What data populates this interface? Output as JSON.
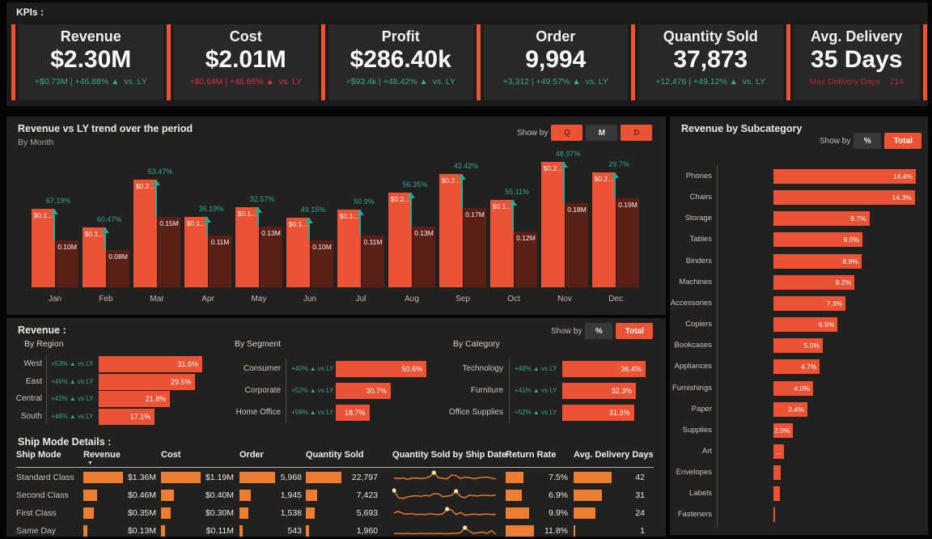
{
  "panels": {
    "kpi": {
      "heading": "KPIs :"
    },
    "trend": {
      "title": "Revenue vs LY trend over the period",
      "subtitle": "By Month",
      "show_by": "Show by",
      "buttons": [
        {
          "label": "Q",
          "active": false
        },
        {
          "label": "M",
          "active": true
        },
        {
          "label": "D",
          "active": false
        }
      ]
    },
    "subcategory": {
      "title": "Revenue by Subcategory",
      "show_by": "Show by",
      "buttons": [
        {
          "label": "%",
          "active": true
        },
        {
          "label": "Total",
          "active": false
        }
      ]
    },
    "revenue": {
      "title": "Revenue :",
      "show_by": "Show by",
      "buttons": [
        {
          "label": "%",
          "active": true
        },
        {
          "label": "Total",
          "active": false
        }
      ],
      "groups": [
        "By Region",
        "By Segment",
        "By Category"
      ],
      "ship_mode_title": "Ship Mode Details :"
    }
  },
  "kpi_cards": [
    {
      "title": "Revenue",
      "value": "$2.30M",
      "delta": "+$0.73M | +46.88% ▲  vs. LY",
      "tone": "pos"
    },
    {
      "title": "Cost",
      "value": "$2.01M",
      "delta": "+$0.64M | +46.66% ▲  vs. LY",
      "tone": "neg"
    },
    {
      "title": "Profit",
      "value": "$286.40k",
      "delta": "+$93.4k | +48.42% ▲  vs. LY",
      "tone": "pos"
    },
    {
      "title": "Order",
      "value": "9,994",
      "delta": "+3,312 | +49.57% ▲  vs. LY",
      "tone": "pos"
    },
    {
      "title": "Quantity Sold",
      "value": "37,873",
      "delta": "+12,476 | +49.12% ▲  vs. LY",
      "tone": "pos"
    },
    {
      "title": "Avg. Delivery",
      "value": "35 Days",
      "delta": "Max Delivery Days    214",
      "tone": "dim"
    }
  ],
  "chart_data": [
    {
      "id": "revenue_vs_ly_by_month",
      "type": "bar",
      "title": "Revenue vs LY trend over the period",
      "subtitle": "By Month",
      "categories": [
        "Jan",
        "Feb",
        "Mar",
        "Apr",
        "May",
        "Jun",
        "Jul",
        "Aug",
        "Sep",
        "Oct",
        "Nov",
        "Dec"
      ],
      "series": [
        {
          "name": "Revenue (current year, $M)",
          "values": [
            0.167,
            0.128,
            0.23,
            0.15,
            0.172,
            0.149,
            0.166,
            0.203,
            0.242,
            0.186,
            0.268,
            0.246
          ],
          "labels": [
            "$0.1...",
            "$0.1...",
            "$0.2...",
            "$0.1...",
            "$0.1...",
            "$0.1...",
            "$0.1...",
            "$0.2...",
            "$0.2...",
            "$0.1...",
            "$0.2...",
            "$0.2..."
          ],
          "color": "#EC5335"
        },
        {
          "name": "Revenue LY ($M)",
          "values": [
            0.1,
            0.08,
            0.15,
            0.11,
            0.13,
            0.1,
            0.11,
            0.13,
            0.17,
            0.12,
            0.18,
            0.19
          ],
          "labels": [
            "0.10M",
            "0.08M",
            "0.15M",
            "0.11M",
            "0.13M",
            "0.10M",
            "0.11M",
            "0.13M",
            "0.17M",
            "0.12M",
            "0.18M",
            "0.19M"
          ],
          "color": "#5A2017"
        }
      ],
      "growth_labels": [
        "67.19%",
        "60.47%",
        "53.47%",
        "36.19%",
        "32.57%",
        "49.15%",
        "50.9%",
        "56.35%",
        "42.42%",
        "55.11%",
        "48.97%",
        "29.7%"
      ],
      "ylim": [
        0,
        0.28
      ],
      "grid": false,
      "legend": false
    },
    {
      "id": "revenue_by_subcategory",
      "type": "bar",
      "orientation": "horizontal",
      "title": "Revenue by Subcategory",
      "categories": [
        "Phones",
        "Chairs",
        "Storage",
        "Tables",
        "Binders",
        "Machines",
        "Accessories",
        "Copiers",
        "Bookcases",
        "Appliances",
        "Furnishings",
        "Paper",
        "Supplies",
        "Art",
        "Envelopes",
        "Labels",
        "Fasteners"
      ],
      "values": [
        14.4,
        14.3,
        9.7,
        9.0,
        8.9,
        8.2,
        7.3,
        6.5,
        5.0,
        4.7,
        4.0,
        3.4,
        2.0,
        1.1,
        0.75,
        0.65,
        0.15
      ],
      "value_labels": [
        "14.4%",
        "14.3%",
        "9.7%",
        "9.0%",
        "8.9%",
        "8.2%",
        "7.3%",
        "6.5%",
        "5.0%",
        "4.7%",
        "4.0%",
        "3.4%",
        "2.0%",
        "...",
        "",
        "",
        ""
      ],
      "unit": "% of revenue"
    },
    {
      "id": "revenue_by_region",
      "type": "bar",
      "orientation": "horizontal",
      "title": "By Region",
      "categories": [
        "West",
        "East",
        "Central",
        "South"
      ],
      "values": [
        31.6,
        29.5,
        21.8,
        17.1
      ],
      "value_labels": [
        "31.6%",
        "29.5%",
        "21.8%",
        "17.1%"
      ],
      "vs_ly": [
        "+53% ▲ vs LY",
        "+46% ▲ vs LY",
        "+42% ▲ vs LY",
        "+46% ▲ vs LY"
      ]
    },
    {
      "id": "revenue_by_segment",
      "type": "bar",
      "orientation": "horizontal",
      "title": "By Segment",
      "categories": [
        "Consumer",
        "Corporate",
        "Home Office"
      ],
      "values": [
        50.6,
        30.7,
        18.7
      ],
      "value_labels": [
        "50.6%",
        "30.7%",
        "18.7%"
      ],
      "vs_ly": [
        "+40% ▲ vs LY",
        "+52% ▲ vs LY",
        "+59% ▲ vs LY"
      ]
    },
    {
      "id": "revenue_by_category",
      "type": "bar",
      "orientation": "horizontal",
      "title": "By Category",
      "categories": [
        "Technology",
        "Furniture",
        "Office Supplies"
      ],
      "values": [
        36.4,
        32.3,
        31.3
      ],
      "value_labels": [
        "36.4%",
        "32.3%",
        "31.3%"
      ],
      "vs_ly": [
        "+48% ▲ vs LY",
        "+41% ▲ vs LY",
        "+52% ▲ vs LY"
      ]
    },
    {
      "id": "ship_mode_table",
      "type": "table",
      "title": "Ship Mode Details :",
      "sort_column": "Revenue",
      "sort_direction": "desc",
      "columns": [
        "Ship Mode",
        "Revenue",
        "Cost",
        "Order",
        "Quantity Sold",
        "Quantity Sold by Ship Date",
        "Return Rate",
        "Avg. Delivery Days"
      ],
      "rows": [
        {
          "ship_mode": "Standard Class",
          "revenue_label": "$1.36M",
          "revenue": 1.36,
          "cost_label": "$1.19M",
          "cost": 1.19,
          "order_label": "5,968",
          "order": 5968,
          "qty_label": "22,797",
          "qty": 22797,
          "return_label": "7.5%",
          "return_rate": 7.5,
          "avg_days_label": "42",
          "avg_days": 42,
          "spark": [
            0.5,
            0.42,
            0.5,
            0.36,
            0.46,
            0.5,
            0.42,
            0.48,
            0.6,
            1.0,
            0.52,
            0.45,
            0.4,
            0.78,
            0.72,
            0.44,
            0.58,
            0.52,
            0.42,
            0.5,
            0.55,
            0.58,
            0.46,
            0.4
          ],
          "dots": [
            9
          ]
        },
        {
          "ship_mode": "Second Class",
          "revenue_label": "$0.46M",
          "revenue": 0.46,
          "cost_label": "$0.40M",
          "cost": 0.4,
          "order_label": "1,945",
          "order": 1945,
          "qty_label": "7,423",
          "qty": 7423,
          "return_label": "6.9%",
          "return_rate": 6.9,
          "avg_days_label": "31",
          "avg_days": 31,
          "spark": [
            1.0,
            0.3,
            0.25,
            0.38,
            0.45,
            0.5,
            0.44,
            0.52,
            0.48,
            0.7,
            0.68,
            0.4,
            0.46,
            0.52,
            0.92,
            0.42,
            0.3,
            0.55,
            0.5,
            0.48,
            0.55,
            0.52,
            0.5,
            0.55
          ],
          "dots": [
            0,
            14
          ]
        },
        {
          "ship_mode": "First Class",
          "revenue_label": "$0.35M",
          "revenue": 0.35,
          "cost_label": "$0.30M",
          "cost": 0.3,
          "order_label": "1,538",
          "order": 1538,
          "qty_label": "5,693",
          "qty": 5693,
          "return_label": "9.9%",
          "return_rate": 9.9,
          "avg_days_label": "24",
          "avg_days": 24,
          "spark": [
            0.55,
            0.7,
            0.5,
            0.44,
            0.5,
            0.4,
            0.44,
            0.4,
            0.48,
            0.44,
            0.4,
            0.46,
            0.92,
            0.85,
            0.4,
            0.6,
            0.34,
            0.4,
            0.45,
            0.4,
            0.42,
            0.45,
            0.4,
            0.43
          ],
          "dots": [
            12
          ]
        },
        {
          "ship_mode": "Same Day",
          "revenue_label": "$0.13M",
          "revenue": 0.13,
          "cost_label": "$0.11M",
          "cost": 0.11,
          "order_label": "543",
          "order": 543,
          "qty_label": "1,960",
          "qty": 1960,
          "return_label": "11.8%",
          "return_rate": 11.8,
          "avg_days_label": "1",
          "avg_days": 1,
          "spark": [
            0.28,
            0.3,
            0.28,
            0.3,
            0.28,
            0.28,
            0.3,
            0.28,
            0.3,
            0.28,
            0.3,
            0.28,
            0.28,
            0.3,
            0.3,
            0.36,
            0.85,
            0.52,
            0.3,
            0.36,
            0.42,
            0.3,
            0.58,
            0.22
          ],
          "dots": [
            16
          ]
        }
      ]
    }
  ]
}
